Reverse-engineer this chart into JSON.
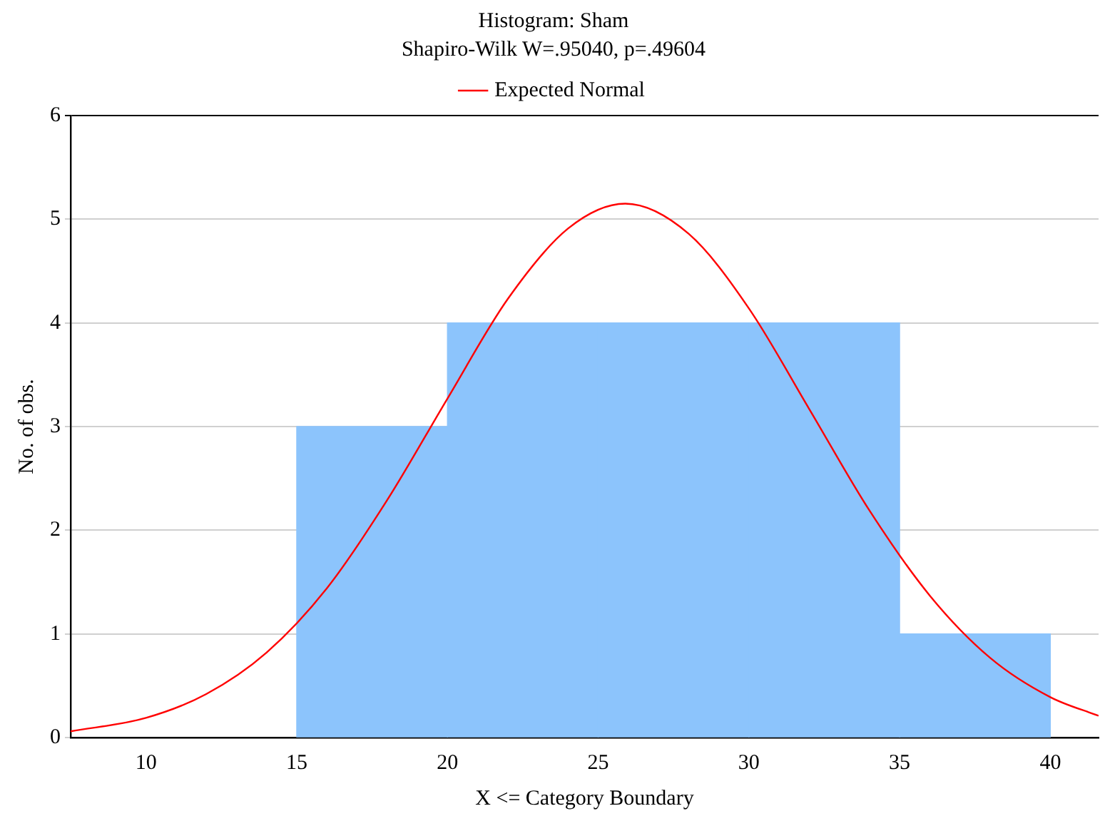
{
  "chart_data": {
    "type": "histogram",
    "title": "Histogram: Sham",
    "subtitle": "Shapiro-Wilk W=.95040, p=.49604",
    "xlabel": "X <= Category Boundary",
    "ylabel": "No. of obs.",
    "bins": [
      15,
      20,
      25,
      30,
      35,
      40
    ],
    "values": [
      3,
      4,
      4,
      4,
      1
    ],
    "color": "#8cc4fc",
    "series": [
      {
        "type": "line",
        "name": "Expected Normal",
        "color": "#ff0000",
        "x": [
          7.5,
          10,
          12,
          14,
          16,
          18,
          20,
          22,
          24,
          25.9,
          28,
          30,
          32,
          34,
          36,
          38,
          40,
          41.6
        ],
        "values": [
          0.06,
          0.19,
          0.42,
          0.82,
          1.44,
          2.29,
          3.27,
          4.23,
          4.91,
          5.15,
          4.86,
          4.14,
          3.17,
          2.19,
          1.37,
          0.77,
          0.39,
          0.21
        ]
      }
    ],
    "xlim": [
      7.5,
      41.6
    ],
    "xticks": [
      10,
      15,
      20,
      25,
      30,
      35,
      40
    ],
    "ylim": [
      0,
      6
    ],
    "yticks": [
      0,
      1,
      2,
      3,
      4,
      5,
      6
    ],
    "grid": "y",
    "legend": "top",
    "marker": "none",
    "line_style": "solid"
  }
}
